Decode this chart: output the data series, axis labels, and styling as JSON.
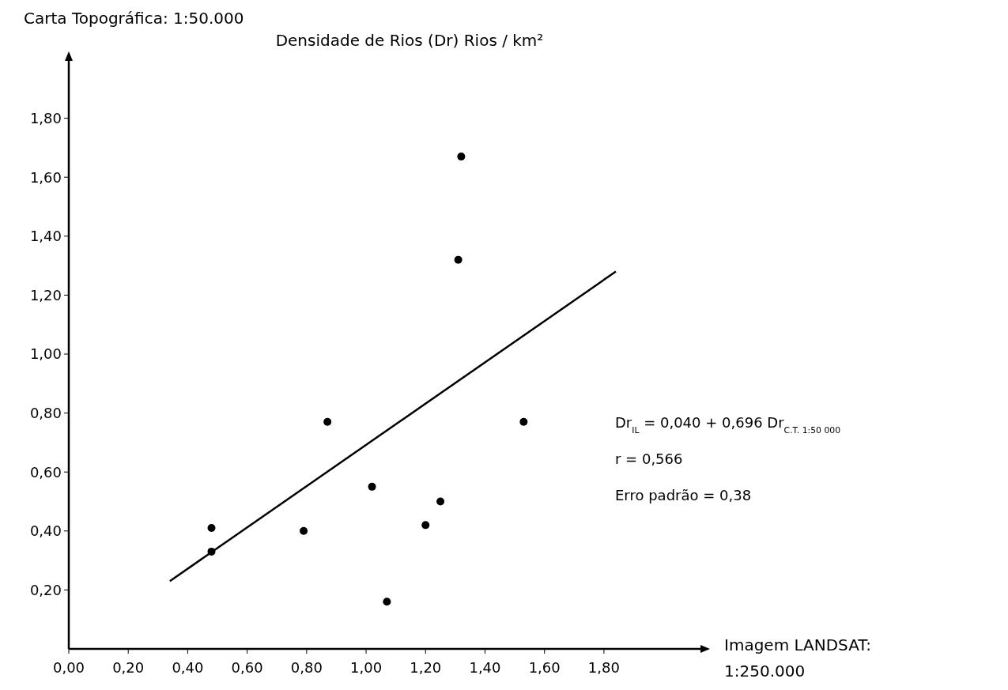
{
  "chart_data": {
    "type": "scatter",
    "title": "Densidade de Rios (Dr) Rios / km²",
    "ylabel": "Carta Topográfica: 1:50.000",
    "xlabel": "Imagem LANDSAT: 1:250.000",
    "annotations": [
      "Dr$_{IL}$ = 0,040 + 0,696 Dr$_{C.T. 1:50 000}$",
      "r = 0,566",
      "Erro padrão = 0,38"
    ],
    "xlim": [
      0,
      2.13
    ],
    "ylim": [
      0,
      2.0
    ],
    "xticks": [
      {
        "value": 0,
        "label": "0,00"
      },
      {
        "value": 0.2,
        "label": "0,20"
      },
      {
        "value": 0.4,
        "label": "0,40"
      },
      {
        "value": 0.6,
        "label": "0,60"
      },
      {
        "value": 0.8,
        "label": "0,80"
      },
      {
        "value": 1,
        "label": "1,00"
      },
      {
        "value": 1.2,
        "label": "1,20"
      },
      {
        "value": 1.4,
        "label": "1,40"
      },
      {
        "value": 1.6,
        "label": "1,60"
      },
      {
        "value": 1.8,
        "label": "1,80"
      }
    ],
    "yticks": [
      {
        "value": 0.2,
        "label": "0,20"
      },
      {
        "value": 0.4,
        "label": "0,40"
      },
      {
        "value": 0.6,
        "label": "0,60"
      },
      {
        "value": 0.8,
        "label": "0,80"
      },
      {
        "value": 1,
        "label": "1,00"
      },
      {
        "value": 1.2,
        "label": "1,20"
      },
      {
        "value": 1.4,
        "label": "1,40"
      },
      {
        "value": 1.6,
        "label": "1,60"
      },
      {
        "value": 1.8,
        "label": "1,80"
      }
    ],
    "grid": false,
    "series": [
      {
        "marker": "circle",
        "color": "#000000",
        "x": [
          1.32,
          1.31,
          0.87,
          1.53,
          1.02,
          1.25,
          0.48,
          0.79,
          1.2,
          0.48,
          1.07
        ],
        "values": [
          1.67,
          1.32,
          0.77,
          0.77,
          0.55,
          0.5,
          0.41,
          0.4,
          0.42,
          0.33,
          0.16
        ]
      },
      {
        "type": "line",
        "marker": "none",
        "color": "#000000",
        "x": [
          0.34,
          1.84
        ],
        "values": [
          0.23,
          1.28
        ]
      }
    ]
  }
}
